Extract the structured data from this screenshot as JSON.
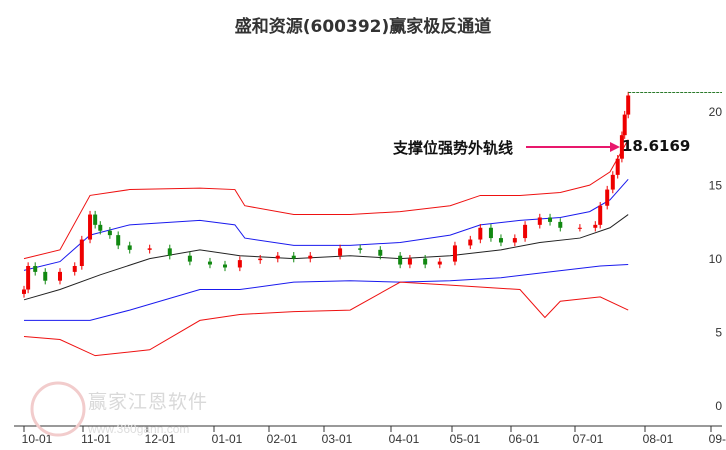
{
  "chart_data": {
    "type": "candlestick",
    "title": "盛和资源(600392)赢家极反通道",
    "x_tick_labels": [
      "10-01",
      "11-01",
      "12-01",
      "01-01",
      "02-01",
      "03-01",
      "04-01",
      "05-01",
      "06-01",
      "07-01",
      "08-01",
      "09-01"
    ],
    "y_tick_labels": [
      "0",
      "5",
      "10",
      "15",
      "20"
    ],
    "y_ticks": [
      0,
      5,
      10,
      15,
      20
    ],
    "ylim": [
      0,
      22.5
    ],
    "x_unit": "months since 10-01",
    "price": {
      "t": [
        0,
        0.07,
        0.19,
        0.36,
        0.61,
        0.86,
        0.98,
        1.11,
        1.19,
        1.27,
        1.42,
        1.55,
        1.73,
        2.04,
        2.34,
        2.64,
        2.94,
        3.2,
        3.47,
        3.84,
        4.16,
        4.45,
        4.75,
        5.24,
        5.54,
        5.84,
        6.15,
        6.31,
        6.56,
        6.8,
        7.05,
        7.31,
        7.48,
        7.66,
        7.83,
        8.06,
        8.22,
        8.45,
        8.61,
        8.77,
        9.07,
        9.29,
        9.36,
        9.46,
        9.54,
        9.61,
        9.67,
        9.71,
        9.76
      ],
      "close": [
        8.4,
        10,
        9.6,
        9.0,
        9.6,
        10,
        11.8,
        13.5,
        12.8,
        12.4,
        12.1,
        11.4,
        11.1,
        11.2,
        10.7,
        10.3,
        10.1,
        9.9,
        10.4,
        10.5,
        10.7,
        10.5,
        10.7,
        11.2,
        11.1,
        10.7,
        10.1,
        10.5,
        10.1,
        10.3,
        11.4,
        11.8,
        12.6,
        11.9,
        11.6,
        11.9,
        12.8,
        13.3,
        13.0,
        12.6,
        12.6,
        12.8,
        14.1,
        15.2,
        16.2,
        17.3,
        18.9,
        20.3,
        21.6
      ]
    },
    "series": [
      {
        "name": "upper-outer",
        "color": "#ee1111",
        "t": [
          0,
          0.61,
          1.11,
          1.73,
          2.79,
          3.38,
          3.56,
          4.45,
          5.39,
          6.15,
          6.97,
          7.48,
          8.14,
          8.77,
          9.21,
          9.5,
          9.76
        ],
        "values": [
          10.5,
          11.1,
          14.8,
          15.2,
          15.3,
          15.2,
          14.1,
          13.5,
          13.5,
          13.7,
          14.1,
          14.8,
          14.8,
          15.0,
          15.5,
          16.4,
          18.6
        ]
      },
      {
        "name": "upper-inner",
        "color": "#1a1aee",
        "t": [
          0,
          0.61,
          1.11,
          1.73,
          2.79,
          3.38,
          3.56,
          4.45,
          5.39,
          6.15,
          6.97,
          7.48,
          8.14,
          8.77,
          9.21,
          9.5,
          9.76
        ],
        "values": [
          9.7,
          10.3,
          12.1,
          12.8,
          13.1,
          12.8,
          11.9,
          11.4,
          11.4,
          11.6,
          12.1,
          12.8,
          13.1,
          13.3,
          13.7,
          14.5,
          15.9
        ]
      },
      {
        "name": "middle",
        "color": "#222222",
        "t": [
          0,
          0.61,
          1.27,
          2.04,
          2.79,
          3.47,
          4.45,
          5.39,
          6.15,
          6.97,
          7.83,
          8.45,
          9.07,
          9.5,
          9.76
        ],
        "values": [
          7.7,
          8.4,
          9.4,
          10.5,
          11.1,
          10.7,
          10.5,
          10.7,
          10.5,
          10.7,
          11.1,
          11.6,
          11.9,
          12.6,
          13.5
        ]
      },
      {
        "name": "lower-inner",
        "color": "#1a1aee",
        "t": [
          0,
          1.11,
          1.73,
          2.79,
          3.47,
          4.45,
          5.39,
          6.15,
          6.97,
          7.83,
          8.61,
          9.36,
          9.76
        ],
        "values": [
          6.3,
          6.3,
          7.0,
          8.4,
          8.4,
          8.9,
          9.0,
          8.9,
          9.0,
          9.2,
          9.6,
          10.0,
          10.1
        ]
      },
      {
        "name": "lower-outer",
        "color": "#ee1111",
        "t": [
          0,
          0.61,
          1.19,
          2.04,
          2.79,
          3.47,
          4.45,
          5.39,
          6.15,
          6.97,
          8.14,
          8.53,
          8.77,
          9.36,
          9.76
        ],
        "values": [
          5.2,
          5.0,
          3.9,
          4.3,
          6.3,
          6.7,
          6.9,
          7.0,
          8.9,
          8.7,
          8.4,
          6.5,
          7.6,
          7.9,
          7.0
        ]
      }
    ],
    "max_line": 21.8,
    "annotation": {
      "label": "支撑位强势外轨线",
      "value": "18.6169"
    }
  },
  "watermark": {
    "name": "赢家江恩软件",
    "url": "www.360gann.com",
    "seal": "江赢恩家"
  }
}
